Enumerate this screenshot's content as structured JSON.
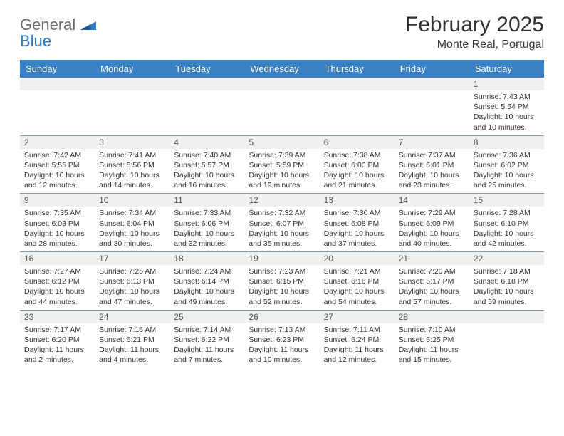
{
  "brand": {
    "part1": "General",
    "part2": "Blue"
  },
  "title": "February 2025",
  "location": "Monte Real, Portugal",
  "colors": {
    "header_bar": "#3a80c4",
    "header_text": "#ffffff",
    "daynum_bg": "#f0f0f0",
    "week_divider": "#7a99b5",
    "brand_gray": "#6b6b6b",
    "brand_blue": "#2f78c2",
    "text": "#333333"
  },
  "day_names": [
    "Sunday",
    "Monday",
    "Tuesday",
    "Wednesday",
    "Thursday",
    "Friday",
    "Saturday"
  ],
  "weeks": [
    [
      null,
      null,
      null,
      null,
      null,
      null,
      {
        "n": "1",
        "sunrise": "Sunrise: 7:43 AM",
        "sunset": "Sunset: 5:54 PM",
        "daylight": "Daylight: 10 hours and 10 minutes."
      }
    ],
    [
      {
        "n": "2",
        "sunrise": "Sunrise: 7:42 AM",
        "sunset": "Sunset: 5:55 PM",
        "daylight": "Daylight: 10 hours and 12 minutes."
      },
      {
        "n": "3",
        "sunrise": "Sunrise: 7:41 AM",
        "sunset": "Sunset: 5:56 PM",
        "daylight": "Daylight: 10 hours and 14 minutes."
      },
      {
        "n": "4",
        "sunrise": "Sunrise: 7:40 AM",
        "sunset": "Sunset: 5:57 PM",
        "daylight": "Daylight: 10 hours and 16 minutes."
      },
      {
        "n": "5",
        "sunrise": "Sunrise: 7:39 AM",
        "sunset": "Sunset: 5:59 PM",
        "daylight": "Daylight: 10 hours and 19 minutes."
      },
      {
        "n": "6",
        "sunrise": "Sunrise: 7:38 AM",
        "sunset": "Sunset: 6:00 PM",
        "daylight": "Daylight: 10 hours and 21 minutes."
      },
      {
        "n": "7",
        "sunrise": "Sunrise: 7:37 AM",
        "sunset": "Sunset: 6:01 PM",
        "daylight": "Daylight: 10 hours and 23 minutes."
      },
      {
        "n": "8",
        "sunrise": "Sunrise: 7:36 AM",
        "sunset": "Sunset: 6:02 PM",
        "daylight": "Daylight: 10 hours and 25 minutes."
      }
    ],
    [
      {
        "n": "9",
        "sunrise": "Sunrise: 7:35 AM",
        "sunset": "Sunset: 6:03 PM",
        "daylight": "Daylight: 10 hours and 28 minutes."
      },
      {
        "n": "10",
        "sunrise": "Sunrise: 7:34 AM",
        "sunset": "Sunset: 6:04 PM",
        "daylight": "Daylight: 10 hours and 30 minutes."
      },
      {
        "n": "11",
        "sunrise": "Sunrise: 7:33 AM",
        "sunset": "Sunset: 6:06 PM",
        "daylight": "Daylight: 10 hours and 32 minutes."
      },
      {
        "n": "12",
        "sunrise": "Sunrise: 7:32 AM",
        "sunset": "Sunset: 6:07 PM",
        "daylight": "Daylight: 10 hours and 35 minutes."
      },
      {
        "n": "13",
        "sunrise": "Sunrise: 7:30 AM",
        "sunset": "Sunset: 6:08 PM",
        "daylight": "Daylight: 10 hours and 37 minutes."
      },
      {
        "n": "14",
        "sunrise": "Sunrise: 7:29 AM",
        "sunset": "Sunset: 6:09 PM",
        "daylight": "Daylight: 10 hours and 40 minutes."
      },
      {
        "n": "15",
        "sunrise": "Sunrise: 7:28 AM",
        "sunset": "Sunset: 6:10 PM",
        "daylight": "Daylight: 10 hours and 42 minutes."
      }
    ],
    [
      {
        "n": "16",
        "sunrise": "Sunrise: 7:27 AM",
        "sunset": "Sunset: 6:12 PM",
        "daylight": "Daylight: 10 hours and 44 minutes."
      },
      {
        "n": "17",
        "sunrise": "Sunrise: 7:25 AM",
        "sunset": "Sunset: 6:13 PM",
        "daylight": "Daylight: 10 hours and 47 minutes."
      },
      {
        "n": "18",
        "sunrise": "Sunrise: 7:24 AM",
        "sunset": "Sunset: 6:14 PM",
        "daylight": "Daylight: 10 hours and 49 minutes."
      },
      {
        "n": "19",
        "sunrise": "Sunrise: 7:23 AM",
        "sunset": "Sunset: 6:15 PM",
        "daylight": "Daylight: 10 hours and 52 minutes."
      },
      {
        "n": "20",
        "sunrise": "Sunrise: 7:21 AM",
        "sunset": "Sunset: 6:16 PM",
        "daylight": "Daylight: 10 hours and 54 minutes."
      },
      {
        "n": "21",
        "sunrise": "Sunrise: 7:20 AM",
        "sunset": "Sunset: 6:17 PM",
        "daylight": "Daylight: 10 hours and 57 minutes."
      },
      {
        "n": "22",
        "sunrise": "Sunrise: 7:18 AM",
        "sunset": "Sunset: 6:18 PM",
        "daylight": "Daylight: 10 hours and 59 minutes."
      }
    ],
    [
      {
        "n": "23",
        "sunrise": "Sunrise: 7:17 AM",
        "sunset": "Sunset: 6:20 PM",
        "daylight": "Daylight: 11 hours and 2 minutes."
      },
      {
        "n": "24",
        "sunrise": "Sunrise: 7:16 AM",
        "sunset": "Sunset: 6:21 PM",
        "daylight": "Daylight: 11 hours and 4 minutes."
      },
      {
        "n": "25",
        "sunrise": "Sunrise: 7:14 AM",
        "sunset": "Sunset: 6:22 PM",
        "daylight": "Daylight: 11 hours and 7 minutes."
      },
      {
        "n": "26",
        "sunrise": "Sunrise: 7:13 AM",
        "sunset": "Sunset: 6:23 PM",
        "daylight": "Daylight: 11 hours and 10 minutes."
      },
      {
        "n": "27",
        "sunrise": "Sunrise: 7:11 AM",
        "sunset": "Sunset: 6:24 PM",
        "daylight": "Daylight: 11 hours and 12 minutes."
      },
      {
        "n": "28",
        "sunrise": "Sunrise: 7:10 AM",
        "sunset": "Sunset: 6:25 PM",
        "daylight": "Daylight: 11 hours and 15 minutes."
      },
      null
    ]
  ]
}
